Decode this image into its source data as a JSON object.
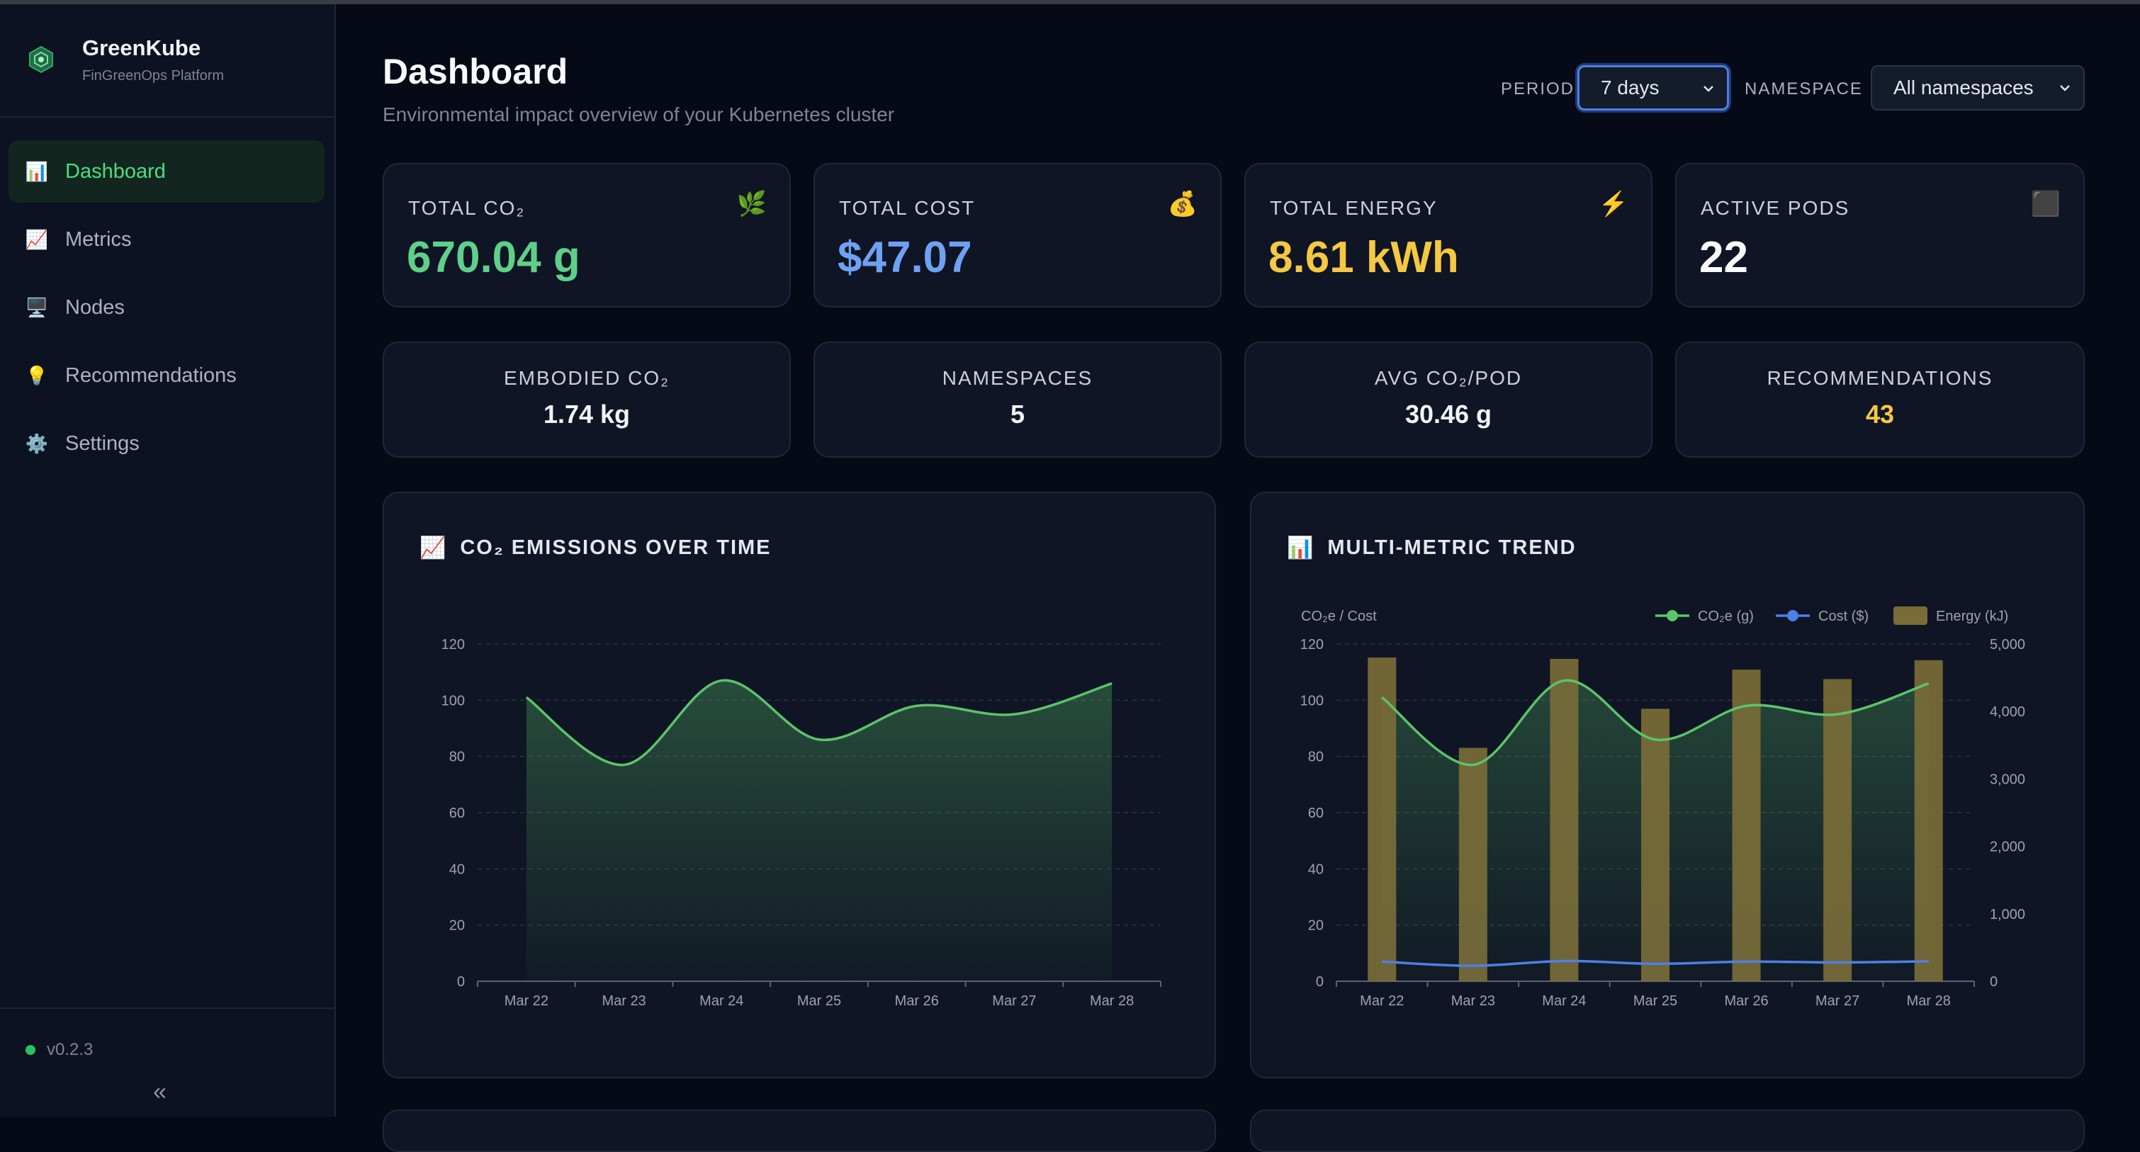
{
  "app": {
    "name": "GreenKube",
    "subtitle": "FinGreenOps Platform",
    "version": "v0.2.3",
    "collapse_icon": "«"
  },
  "sidebar": {
    "items": [
      {
        "label": "Dashboard",
        "icon": "📊",
        "active": true
      },
      {
        "label": "Metrics",
        "icon": "📈"
      },
      {
        "label": "Nodes",
        "icon": "🖥️"
      },
      {
        "label": "Recommendations",
        "icon": "💡"
      },
      {
        "label": "Settings",
        "icon": "⚙️"
      }
    ]
  },
  "header": {
    "title": "Dashboard",
    "subtitle": "Environmental impact overview of your Kubernetes cluster",
    "period_label": "PERIOD",
    "period_value": "7 days",
    "namespace_label": "NAMESPACE",
    "namespace_value": "All namespaces"
  },
  "kpis": [
    {
      "label": "TOTAL CO₂",
      "value": "670.04 g",
      "icon": "🌿",
      "color": "#5fd08a"
    },
    {
      "label": "TOTAL COST",
      "value": "$47.07",
      "icon": "💰",
      "color": "#6ea1f2"
    },
    {
      "label": "TOTAL ENERGY",
      "value": "8.61 kWh",
      "icon": "⚡",
      "color": "#f5c842"
    },
    {
      "label": "ACTIVE PODS",
      "value": "22",
      "icon": "⬛",
      "color": "#f8fafc"
    }
  ],
  "stats": [
    {
      "label": "EMBODIED CO₂",
      "value": "1.74 kg"
    },
    {
      "label": "NAMESPACES",
      "value": "5"
    },
    {
      "label": "AVG CO₂/POD",
      "value": "30.46 g"
    },
    {
      "label": "RECOMMENDATIONS",
      "value": "43",
      "color": "#f5c842"
    }
  ],
  "colors": {
    "co2": "#5cc46a",
    "cost": "#4f7fe8",
    "energy": "#7a6c38",
    "accent": "#4ade80"
  },
  "chart_data": [
    {
      "type": "area",
      "title": "CO₂ EMISSIONS OVER TIME",
      "icon": "📈",
      "x": [
        "Mar 22",
        "Mar 23",
        "Mar 24",
        "Mar 25",
        "Mar 26",
        "Mar 27",
        "Mar 28"
      ],
      "series": [
        {
          "values": [
            101,
            77,
            107,
            86,
            98,
            95,
            106
          ]
        }
      ],
      "ylim": [
        0,
        120
      ],
      "yticks": [
        0,
        20,
        40,
        60,
        80,
        100,
        120
      ],
      "grid": true
    },
    {
      "type": "bar",
      "title": "MULTI-METRIC TREND",
      "icon": "📊",
      "x": [
        "Mar 22",
        "Mar 23",
        "Mar 24",
        "Mar 25",
        "Mar 26",
        "Mar 27",
        "Mar 28"
      ],
      "ylabel": "CO₂e / Cost",
      "series": [
        {
          "name": "CO₂e (g)",
          "type": "line",
          "axis": "left",
          "values": [
            101,
            77,
            107,
            86,
            98,
            95,
            106
          ]
        },
        {
          "name": "Cost ($)",
          "type": "line",
          "axis": "left",
          "values": [
            7,
            5.5,
            7.2,
            6.2,
            7,
            6.7,
            7.1
          ]
        },
        {
          "name": "Energy (kJ)",
          "type": "bar",
          "axis": "right",
          "values": [
            4800,
            3460,
            4780,
            4040,
            4620,
            4480,
            4760
          ]
        }
      ],
      "ylim": [
        0,
        120
      ],
      "yticks": [
        0,
        20,
        40,
        60,
        80,
        100,
        120
      ],
      "y2lim": [
        0,
        5000
      ],
      "y2ticks": [
        "0",
        "1,000",
        "2,000",
        "3,000",
        "4,000",
        "5,000"
      ],
      "legend": "top-right",
      "grid": true
    }
  ]
}
